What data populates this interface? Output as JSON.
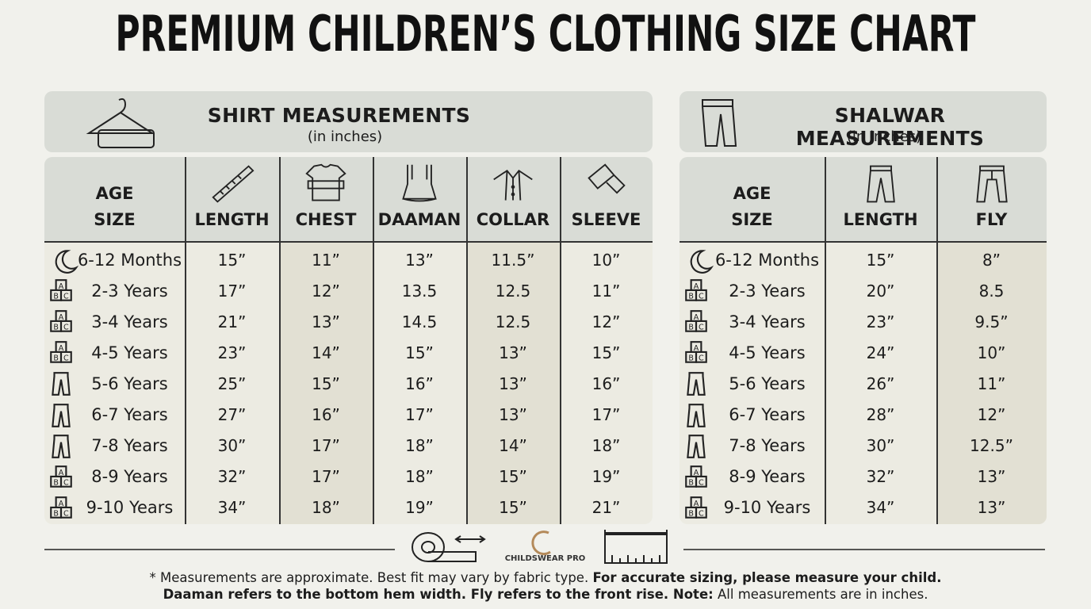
{
  "title": "PREMIUM CHILDREN’S CLOTHING SIZE CHART",
  "shirt": {
    "title": "SHIRT MEASUREMENTS",
    "subtitle": "(in inches)",
    "age_header": [
      "AGE",
      "SIZE"
    ],
    "columns": [
      "LENGTH",
      "CHEST",
      "DAAMAN",
      "COLLAR",
      "SLEEVE"
    ],
    "rows": [
      {
        "age": "6-12 Months",
        "values": [
          "15”",
          "11”",
          "13”",
          "11.5”",
          "10”"
        ]
      },
      {
        "age": "2-3 Years",
        "values": [
          "17”",
          "12”",
          "13.5",
          "12.5",
          "11”"
        ]
      },
      {
        "age": "3-4 Years",
        "values": [
          "21”",
          "13”",
          "14.5",
          "12.5",
          "12”"
        ]
      },
      {
        "age": "4-5 Years",
        "values": [
          "23”",
          "14”",
          "15”",
          "13”",
          "15”"
        ]
      },
      {
        "age": "5-6 Years",
        "values": [
          "25”",
          "15”",
          "16”",
          "13”",
          "16”"
        ]
      },
      {
        "age": "6-7 Years",
        "values": [
          "27”",
          "16”",
          "17”",
          "13”",
          "17”"
        ]
      },
      {
        "age": "7-8 Years",
        "values": [
          "30”",
          "17”",
          "18”",
          "14”",
          "18”"
        ]
      },
      {
        "age": "8-9 Years",
        "values": [
          "32”",
          "17”",
          "18”",
          "15”",
          "19”"
        ]
      },
      {
        "age": "9-10 Years",
        "values": [
          "34”",
          "18”",
          "19”",
          "15”",
          "21”"
        ]
      }
    ]
  },
  "shalwar": {
    "title": "SHALWAR MEASUREMENTS",
    "subtitle": "(in inches)",
    "age_header": [
      "AGE",
      "SIZE"
    ],
    "columns": [
      "LENGTH",
      "FLY"
    ],
    "rows": [
      {
        "age": "6-12 Months",
        "values": [
          "15”",
          "8”"
        ]
      },
      {
        "age": "2-3 Years",
        "values": [
          "20”",
          "8.5"
        ]
      },
      {
        "age": "3-4 Years",
        "values": [
          "23”",
          "9.5”"
        ]
      },
      {
        "age": "4-5 Years",
        "values": [
          "24”",
          "10”"
        ]
      },
      {
        "age": "5-6 Years",
        "values": [
          "26”",
          "11”"
        ]
      },
      {
        "age": "6-7 Years",
        "values": [
          "28”",
          "12”"
        ]
      },
      {
        "age": "7-8 Years",
        "values": [
          "30”",
          "12.5”"
        ]
      },
      {
        "age": "8-9 Years",
        "values": [
          "32”",
          "13”"
        ]
      },
      {
        "age": "9-10 Years",
        "values": [
          "34”",
          "13”"
        ]
      }
    ]
  },
  "logo": "CHILDSWEAR PRO",
  "footnote": [
    [
      {
        "text": "* Measurements are approximate. Best fit may vary by fabric type.",
        "bold": false
      },
      {
        "text": "For accurate sizing, please measure your child.",
        "bold": true
      }
    ],
    [
      {
        "text": "Daaman refers to the bottom hem width. Fly refers to the front rise. Note:",
        "bold": true
      },
      {
        "text": "All measurements are in inches.",
        "bold": false
      }
    ]
  ]
}
